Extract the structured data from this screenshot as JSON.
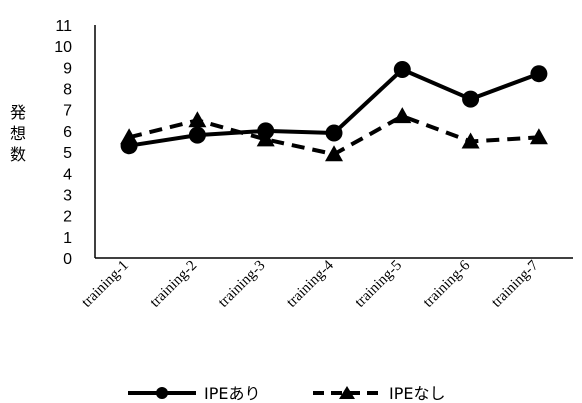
{
  "chart_data": {
    "type": "line",
    "title": "",
    "xlabel": "",
    "ylabel": "発想数",
    "categories": [
      "training-1",
      "training-2",
      "training-3",
      "training-4",
      "training-5",
      "training-6",
      "training-7"
    ],
    "ylim": [
      0,
      11
    ],
    "yticks": [
      "0",
      "1",
      "2",
      "3",
      "4",
      "5",
      "6",
      "7",
      "8",
      "9",
      "10",
      "11"
    ],
    "grid": false,
    "legend_position": "bottom",
    "series": [
      {
        "name": "IPEあり",
        "values": [
          5.3,
          5.8,
          6.0,
          5.9,
          8.9,
          7.5,
          8.7
        ],
        "line_style": "solid",
        "marker": "circle",
        "color": "#000000"
      },
      {
        "name": "IPEなし",
        "values": [
          5.7,
          6.5,
          5.6,
          4.9,
          6.7,
          5.5,
          5.7
        ],
        "line_style": "dashed",
        "marker": "triangle",
        "color": "#000000"
      }
    ]
  }
}
